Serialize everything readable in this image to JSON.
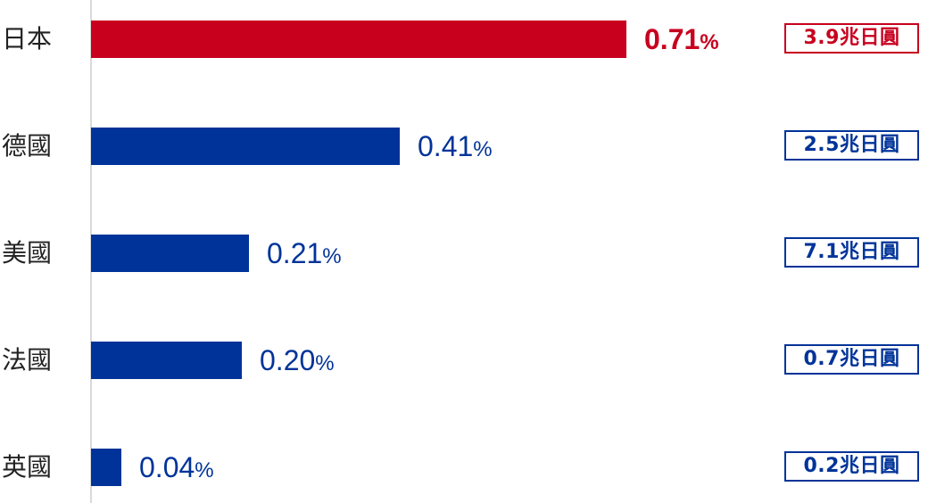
{
  "chart_data": {
    "type": "bar",
    "orientation": "horizontal",
    "categories": [
      "日本",
      "德國",
      "美國",
      "法國",
      "英國"
    ],
    "values": [
      0.71,
      0.41,
      0.21,
      0.2,
      0.04
    ],
    "value_labels": [
      "0.71",
      "0.41",
      "0.21",
      "0.20",
      "0.04"
    ],
    "unit": "%",
    "amount_labels": [
      "3.9兆日圓",
      "2.5兆日圓",
      "7.1兆日圓",
      "0.7兆日圓",
      "0.2兆日圓"
    ],
    "xlim": [
      0,
      0.71
    ],
    "grid": false,
    "highlight_index": 0,
    "colors": {
      "highlight": "#c8001e",
      "default": "#003399",
      "axis": "#d9d9d9"
    }
  }
}
